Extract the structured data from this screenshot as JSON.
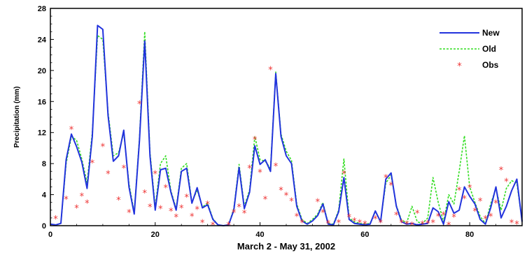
{
  "chart_data": {
    "type": "line",
    "title": "",
    "xlabel": "March 2 - May 31, 2002",
    "ylabel": "Precipitation (mm)",
    "xlim": [
      0,
      90
    ],
    "ylim": [
      0,
      28
    ],
    "x_ticks": [
      0,
      20,
      40,
      60,
      80
    ],
    "y_ticks": [
      0,
      4,
      8,
      12,
      16,
      20,
      24,
      28
    ],
    "legend_position": "top-right",
    "colors": {
      "new": "#2233dd",
      "old": "#33dd22",
      "obs": "#ee3333"
    },
    "series": [
      {
        "name": "New",
        "style": "solid-line",
        "x": [
          0,
          1,
          2,
          3,
          4,
          5,
          6,
          7,
          8,
          9,
          10,
          11,
          12,
          13,
          14,
          15,
          16,
          17,
          18,
          19,
          20,
          21,
          22,
          23,
          24,
          25,
          26,
          27,
          28,
          29,
          30,
          31,
          32,
          33,
          34,
          35,
          36,
          37,
          38,
          39,
          40,
          41,
          42,
          43,
          44,
          45,
          46,
          47,
          48,
          49,
          50,
          51,
          52,
          53,
          54,
          55,
          56,
          57,
          58,
          59,
          60,
          61,
          62,
          63,
          64,
          65,
          66,
          67,
          68,
          69,
          70,
          71,
          72,
          73,
          74,
          75,
          76,
          77,
          78,
          79,
          80,
          81,
          82,
          83,
          84,
          85,
          86,
          87,
          88,
          89,
          90
        ],
        "values": [
          0.2,
          0.1,
          0.3,
          8.5,
          11.8,
          10.2,
          8.2,
          4.8,
          11.5,
          25.8,
          25.3,
          14.2,
          8.3,
          9.0,
          12.3,
          5.0,
          1.5,
          11.0,
          23.8,
          9.0,
          2.0,
          7.2,
          7.4,
          4.3,
          2.0,
          7.0,
          7.4,
          2.9,
          4.9,
          2.3,
          2.7,
          0.8,
          0.1,
          0.0,
          0.1,
          2.0,
          7.5,
          2.2,
          4.3,
          10.3,
          7.9,
          8.5,
          7.0,
          19.6,
          11.5,
          9.0,
          8.0,
          2.5,
          0.6,
          0.2,
          0.6,
          1.3,
          2.8,
          0.2,
          0.1,
          1.8,
          6.2,
          0.8,
          0.3,
          0.2,
          0.1,
          0.2,
          1.9,
          0.5,
          6.0,
          6.8,
          2.5,
          0.5,
          0.2,
          0.3,
          0.1,
          0.2,
          0.3,
          2.3,
          1.8,
          0.2,
          3.1,
          1.6,
          2.0,
          5.0,
          3.8,
          2.8,
          0.8,
          0.2,
          2.3,
          5.0,
          1.0,
          2.5,
          4.5,
          6.0,
          0.5
        ]
      },
      {
        "name": "Old",
        "style": "dashed-line",
        "x": [
          0,
          1,
          2,
          3,
          4,
          5,
          6,
          7,
          8,
          9,
          10,
          11,
          12,
          13,
          14,
          15,
          16,
          17,
          18,
          19,
          20,
          21,
          22,
          23,
          24,
          25,
          26,
          27,
          28,
          29,
          30,
          31,
          32,
          33,
          34,
          35,
          36,
          37,
          38,
          39,
          40,
          41,
          42,
          43,
          44,
          45,
          46,
          47,
          48,
          49,
          50,
          51,
          52,
          53,
          54,
          55,
          56,
          57,
          58,
          59,
          60,
          61,
          62,
          63,
          64,
          65,
          66,
          67,
          68,
          69,
          70,
          71,
          72,
          73,
          74,
          75,
          76,
          77,
          78,
          79,
          80,
          81,
          82,
          83,
          84,
          85,
          86,
          87,
          88,
          89,
          90
        ],
        "values": [
          0.2,
          0.1,
          0.3,
          8.0,
          11.5,
          11.0,
          8.6,
          5.5,
          12.0,
          24.5,
          24.0,
          14.6,
          9.0,
          9.4,
          12.0,
          5.4,
          1.7,
          11.4,
          25.0,
          9.5,
          2.4,
          8.0,
          9.0,
          4.5,
          2.2,
          7.4,
          8.0,
          3.0,
          4.6,
          2.4,
          2.9,
          0.9,
          0.1,
          0.0,
          0.1,
          2.2,
          7.9,
          2.5,
          4.6,
          11.5,
          8.5,
          8.3,
          7.4,
          19.8,
          11.8,
          9.6,
          8.4,
          2.8,
          0.8,
          0.3,
          0.8,
          1.5,
          3.0,
          0.3,
          0.2,
          2.0,
          8.6,
          1.0,
          0.5,
          0.3,
          0.2,
          0.3,
          1.8,
          0.6,
          5.5,
          6.5,
          2.6,
          0.7,
          0.4,
          2.5,
          0.5,
          0.3,
          1.0,
          6.2,
          3.0,
          0.5,
          4.0,
          2.8,
          7.0,
          11.6,
          5.0,
          3.0,
          1.2,
          0.3,
          2.8,
          4.8,
          2.0,
          4.8,
          5.8,
          5.5,
          0.6
        ]
      },
      {
        "name": "Obs",
        "style": "markers",
        "x": [
          1,
          3,
          4,
          5,
          6,
          7,
          8,
          10,
          11,
          13,
          14,
          15,
          17,
          18,
          19,
          20,
          21,
          22,
          23,
          24,
          25,
          26,
          27,
          28,
          29,
          30,
          31,
          34,
          35,
          36,
          37,
          38,
          39,
          40,
          41,
          42,
          43,
          44,
          45,
          46,
          47,
          48,
          51,
          52,
          53,
          55,
          56,
          57,
          58,
          59,
          60,
          62,
          63,
          64,
          65,
          66,
          67,
          68,
          69,
          70,
          71,
          72,
          73,
          74,
          75,
          76,
          77,
          78,
          79,
          80,
          81,
          82,
          83,
          84,
          85,
          86,
          87,
          88,
          89
        ],
        "values": [
          1.0,
          3.5,
          12.5,
          2.4,
          3.9,
          3.0,
          8.2,
          10.3,
          6.8,
          3.4,
          7.5,
          1.8,
          15.8,
          4.3,
          2.5,
          6.8,
          2.3,
          5.0,
          2.0,
          1.2,
          2.4,
          3.8,
          1.3,
          2.2,
          0.5,
          2.9,
          0.2,
          0.2,
          1.8,
          2.5,
          1.7,
          7.5,
          11.2,
          7.0,
          3.5,
          20.2,
          7.8,
          4.7,
          4.0,
          3.3,
          1.3,
          0.5,
          3.2,
          1.8,
          0.4,
          0.5,
          6.8,
          1.2,
          0.7,
          0.5,
          0.3,
          1.0,
          0.5,
          6.3,
          5.3,
          1.5,
          0.5,
          0.3,
          0.2,
          1.7,
          0.3,
          0.4,
          0.5,
          1.3,
          1.5,
          0.2,
          1.2,
          4.7,
          3.6,
          5.0,
          2.0,
          3.3,
          1.0,
          1.3,
          3.0,
          7.3,
          5.8,
          0.5,
          0.3
        ]
      }
    ]
  }
}
